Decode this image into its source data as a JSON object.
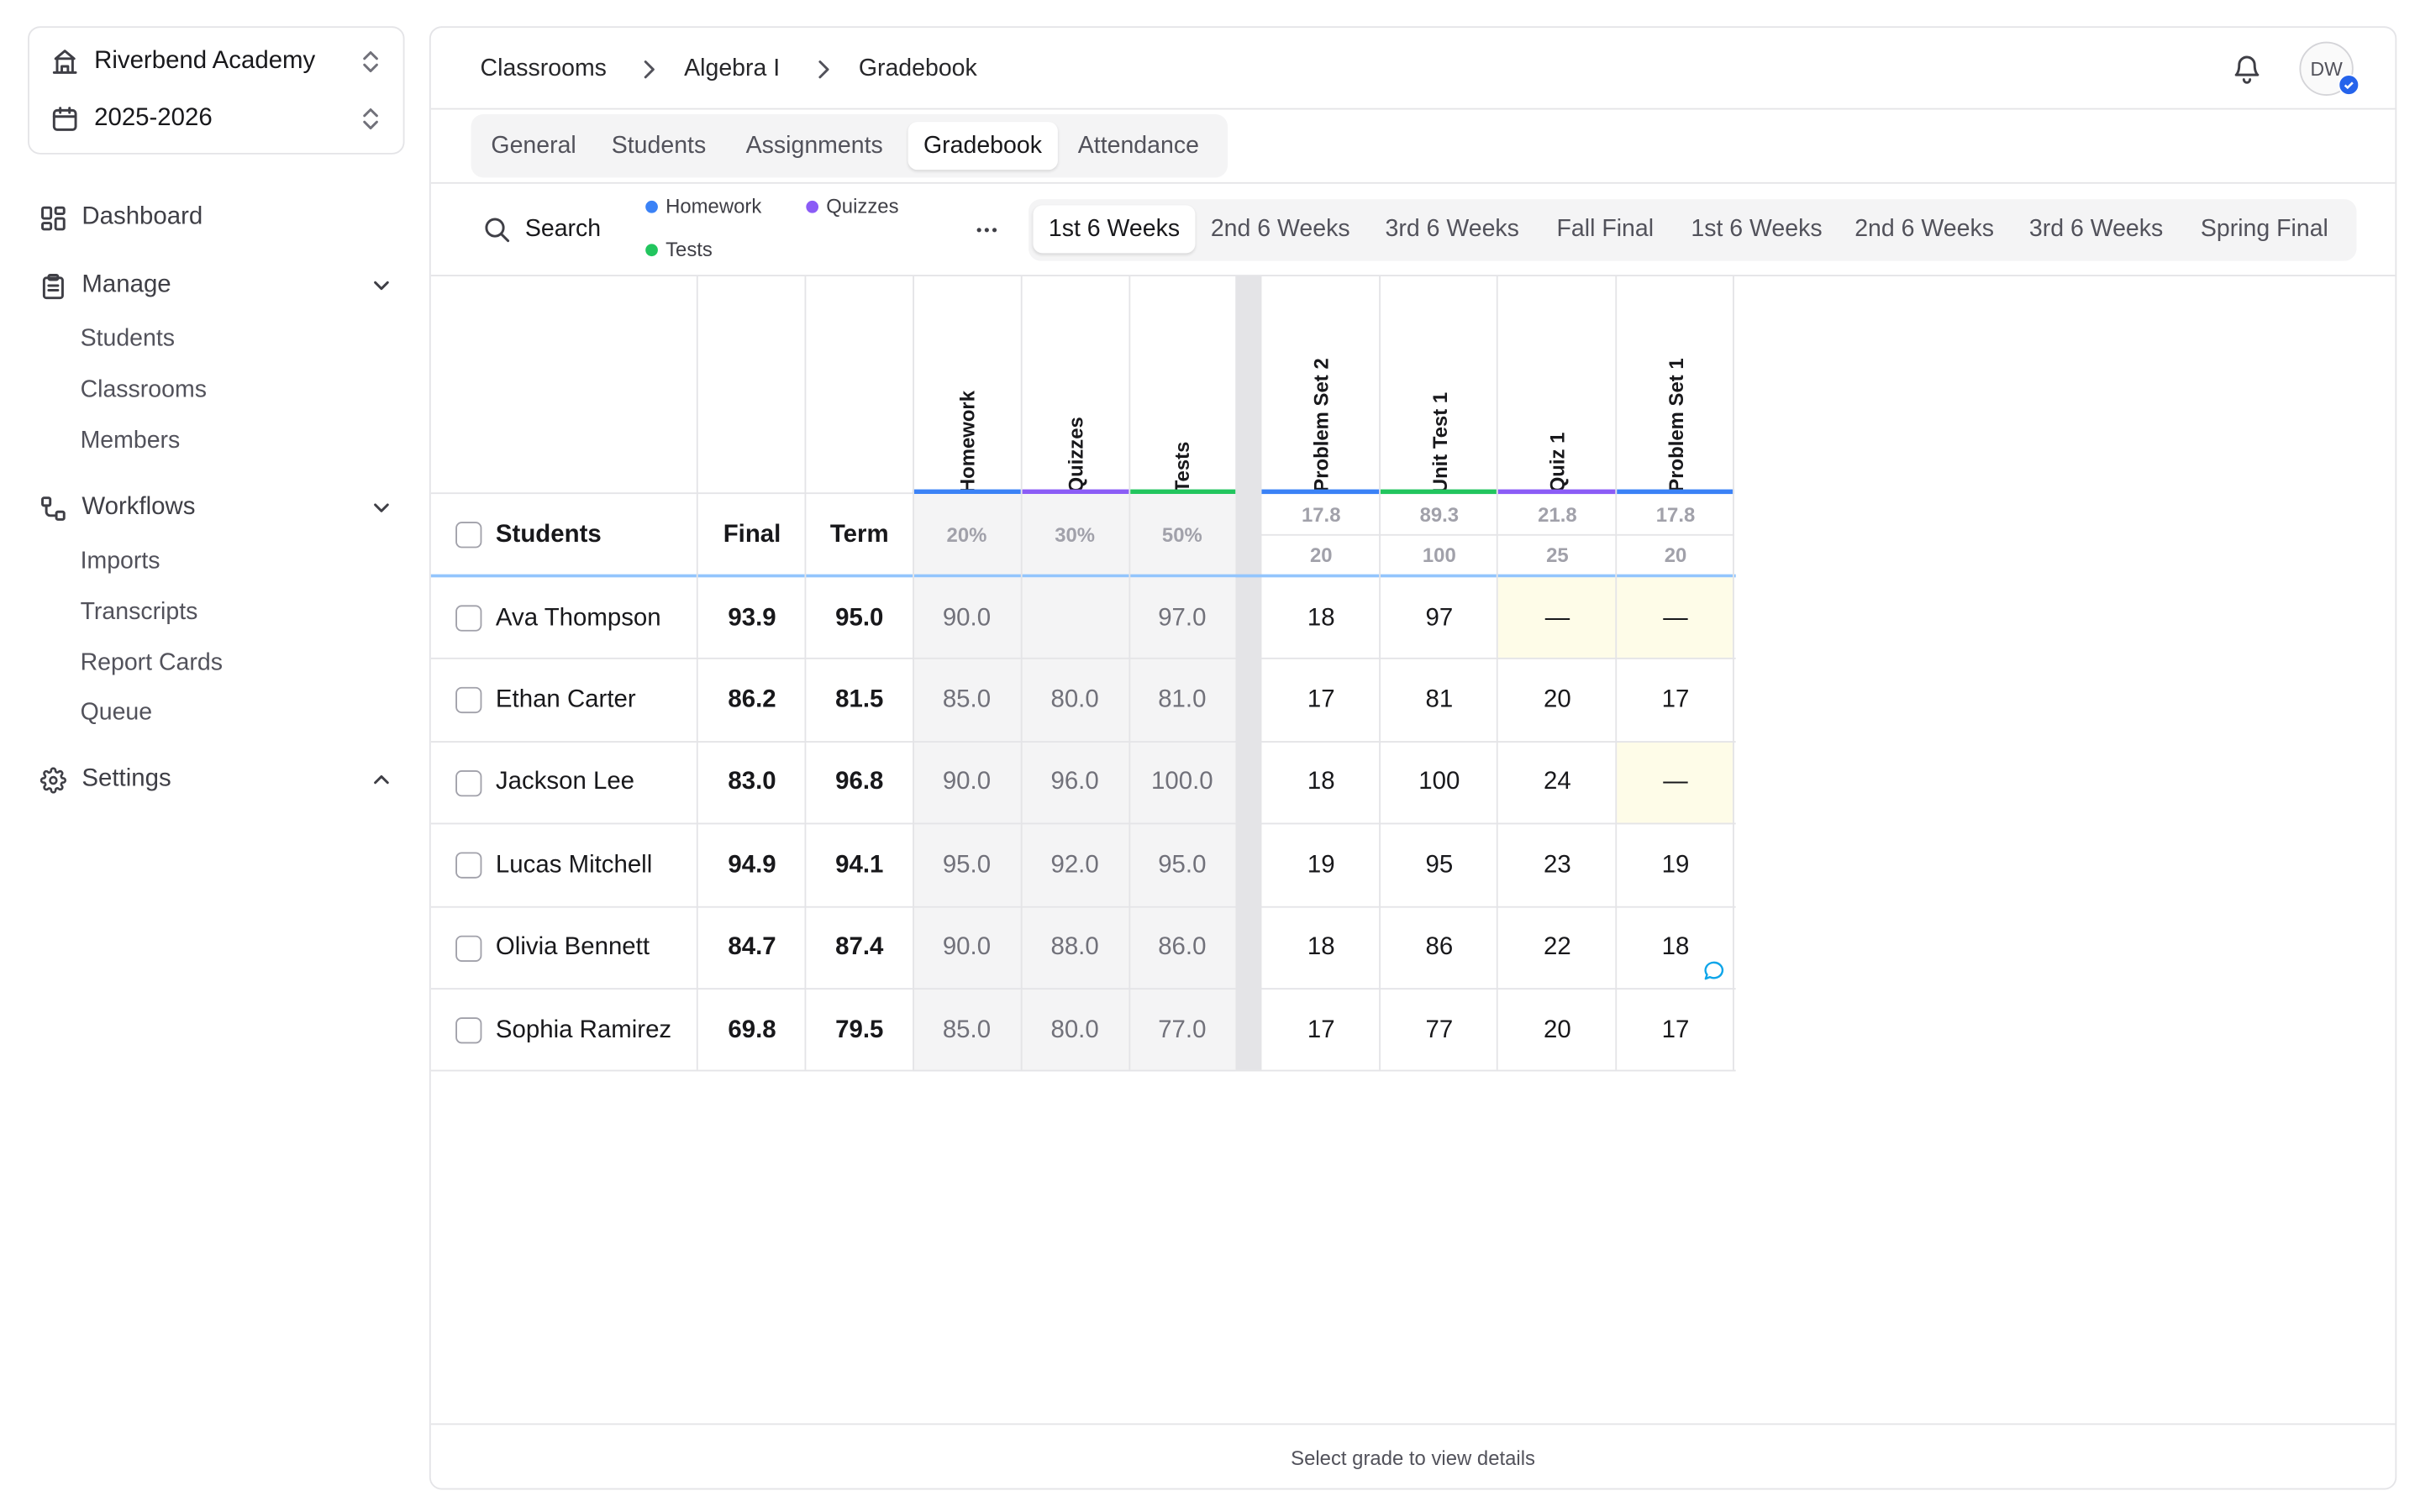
{
  "sidebar": {
    "school": "Riverbend Academy",
    "year": "2025-2026",
    "nav": {
      "dashboard": "Dashboard",
      "manage": "Manage",
      "manage_items": [
        "Students",
        "Classrooms",
        "Members"
      ],
      "workflows": "Workflows",
      "workflow_items": [
        "Imports",
        "Transcripts",
        "Report Cards",
        "Queue"
      ],
      "settings": "Settings"
    }
  },
  "breadcrumb": [
    "Classrooms",
    "Algebra I",
    "Gradebook"
  ],
  "user": {
    "initials": "DW"
  },
  "tabs": [
    "General",
    "Students",
    "Assignments",
    "Gradebook",
    "Attendance"
  ],
  "active_tab": "Gradebook",
  "toolbar": {
    "search_label": "Search",
    "legend": [
      {
        "label": "Homework",
        "color": "#3b82f6"
      },
      {
        "label": "Quizzes",
        "color": "#8b5cf6"
      },
      {
        "label": "Tests",
        "color": "#22c55e"
      }
    ],
    "periods": [
      "1st 6 Weeks",
      "2nd 6 Weeks",
      "3rd 6 Weeks",
      "Fall Final",
      "1st 6 Weeks",
      "2nd 6 Weeks",
      "3rd 6 Weeks",
      "Spring Final"
    ],
    "active_period": "1st 6 Weeks"
  },
  "gradebook": {
    "headers": {
      "students": "Students",
      "final": "Final",
      "term": "Term"
    },
    "categories": [
      {
        "name": "Homework",
        "weight": "20%",
        "color": "#3b82f6"
      },
      {
        "name": "Quizzes",
        "weight": "30%",
        "color": "#8b5cf6"
      },
      {
        "name": "Tests",
        "weight": "50%",
        "color": "#22c55e"
      }
    ],
    "assignments": [
      {
        "name": "Problem Set 2",
        "avg": "17.8",
        "max": "20",
        "color": "#3b82f6"
      },
      {
        "name": "Unit Test 1",
        "avg": "89.3",
        "max": "100",
        "color": "#22c55e"
      },
      {
        "name": "Quiz 1",
        "avg": "21.8",
        "max": "25",
        "color": "#8b5cf6"
      },
      {
        "name": "Problem Set 1",
        "avg": "17.8",
        "max": "20",
        "color": "#3b82f6"
      }
    ],
    "rows": [
      {
        "name": "Ava Thompson",
        "final": "93.9",
        "term": "95.0",
        "cats": [
          "90.0",
          "",
          "97.0"
        ],
        "grades": [
          "18",
          "97",
          "—",
          "—"
        ]
      },
      {
        "name": "Ethan Carter",
        "final": "86.2",
        "term": "81.5",
        "cats": [
          "85.0",
          "80.0",
          "81.0"
        ],
        "grades": [
          "17",
          "81",
          "20",
          "17"
        ]
      },
      {
        "name": "Jackson Lee",
        "final": "83.0",
        "term": "96.8",
        "cats": [
          "90.0",
          "96.0",
          "100.0"
        ],
        "grades": [
          "18",
          "100",
          "24",
          "—"
        ]
      },
      {
        "name": "Lucas Mitchell",
        "final": "94.9",
        "term": "94.1",
        "cats": [
          "95.0",
          "92.0",
          "95.0"
        ],
        "grades": [
          "19",
          "95",
          "23",
          "19"
        ]
      },
      {
        "name": "Olivia Bennett",
        "final": "84.7",
        "term": "87.4",
        "cats": [
          "90.0",
          "88.0",
          "86.0"
        ],
        "grades": [
          "18",
          "86",
          "22",
          "18"
        ]
      },
      {
        "name": "Sophia Ramirez",
        "final": "69.8",
        "term": "79.5",
        "cats": [
          "85.0",
          "80.0",
          "77.0"
        ],
        "grades": [
          "17",
          "77",
          "20",
          "17"
        ]
      }
    ]
  },
  "footer_text": "Select grade to view details"
}
